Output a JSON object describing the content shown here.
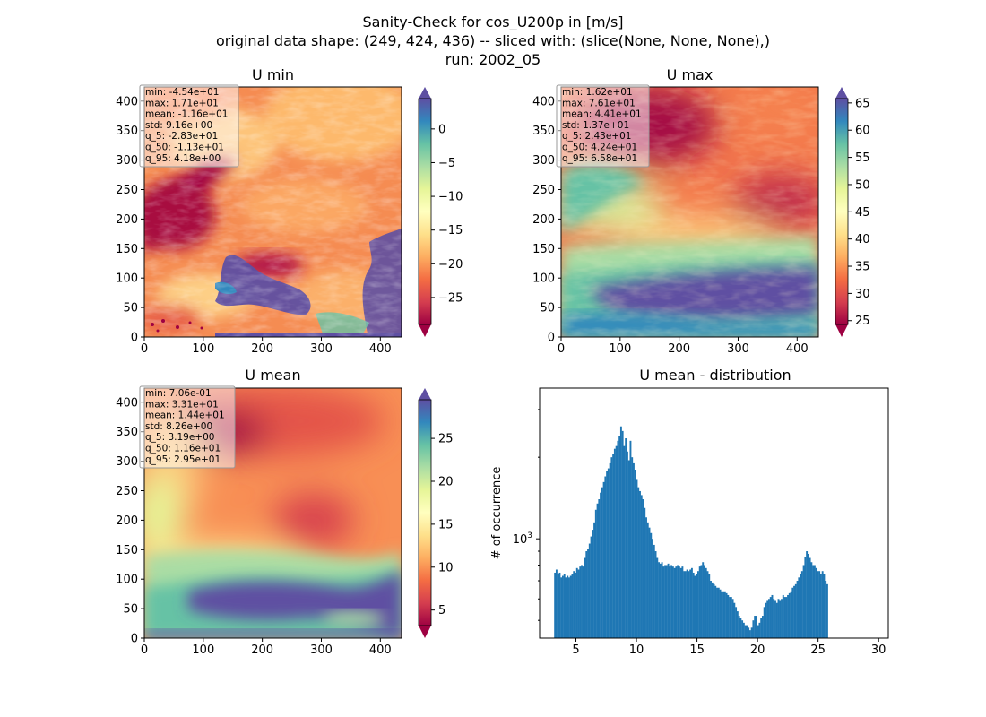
{
  "title_lines": [
    "Sanity-Check for cos_U200p in [m/s]",
    "original data shape: (249, 424, 436) -- sliced with: (slice(None, None, None),)",
    "run: 2002_05"
  ],
  "colors": {
    "hist_bar": "#1f77b4",
    "spectral": [
      "#9e0142",
      "#d53e4f",
      "#f46d43",
      "#fdae61",
      "#fee08b",
      "#ffffbf",
      "#e6f598",
      "#abdda4",
      "#66c2a5",
      "#3288bd",
      "#5e4fa2"
    ],
    "stats_box_bg": "#ffffff",
    "stats_box_edge": "#999999"
  },
  "chart_data": [
    {
      "type": "heatmap",
      "title": "U min",
      "colormap": "Spectral",
      "xlim": [
        0,
        436
      ],
      "ylim": [
        0,
        424
      ],
      "xticks": [
        0,
        100,
        200,
        300,
        400
      ],
      "yticks": [
        0,
        50,
        100,
        150,
        200,
        250,
        300,
        350,
        400
      ],
      "colorbar": {
        "vmin": -29,
        "vmax": 4.5,
        "ticks": [
          0,
          -5,
          -10,
          -15,
          -20,
          -25
        ],
        "extend": "both"
      },
      "stats": [
        "min: -4.54e+01",
        "max: 1.71e+01",
        "mean: -1.16e+01",
        "std: 9.16e+00",
        "q_5: -2.83e+01",
        "q_50: -1.13e+01",
        "q_95: 4.18e+00"
      ]
    },
    {
      "type": "heatmap",
      "title": "U max",
      "colormap": "Spectral",
      "xlim": [
        0,
        436
      ],
      "ylim": [
        0,
        424
      ],
      "xticks": [
        0,
        100,
        200,
        300,
        400
      ],
      "yticks": [
        0,
        50,
        100,
        150,
        200,
        250,
        300,
        350,
        400
      ],
      "colorbar": {
        "vmin": 24.3,
        "vmax": 65.8,
        "ticks": [
          25,
          30,
          35,
          40,
          45,
          50,
          55,
          60,
          65
        ],
        "extend": "both"
      },
      "stats": [
        "min: 1.62e+01",
        "max: 7.61e+01",
        "mean: 4.41e+01",
        "std: 1.37e+01",
        "q_5: 2.43e+01",
        "q_50: 4.24e+01",
        "q_95: 6.58e+01"
      ]
    },
    {
      "type": "heatmap",
      "title": "U mean",
      "colormap": "Spectral",
      "xlim": [
        0,
        436
      ],
      "ylim": [
        0,
        424
      ],
      "xticks": [
        0,
        100,
        200,
        300,
        400
      ],
      "yticks": [
        0,
        50,
        100,
        150,
        200,
        250,
        300,
        350,
        400
      ],
      "colorbar": {
        "vmin": 3.19,
        "vmax": 29.5,
        "ticks": [
          5,
          10,
          15,
          20,
          25
        ],
        "extend": "both"
      },
      "stats": [
        "min: 7.06e-01",
        "max: 3.31e+01",
        "mean: 1.44e+01",
        "std: 8.26e+00",
        "q_5: 3.19e+00",
        "q_50: 1.16e+01",
        "q_95: 2.95e+01"
      ]
    },
    {
      "type": "bar",
      "title": "U mean - distribution",
      "ylabel": "# of occurrence",
      "xlabel": "",
      "yscale": "log",
      "xlim": [
        2.0,
        30.8
      ],
      "ylim": [
        430,
        3600
      ],
      "xticks": [
        5,
        10,
        15,
        20,
        25,
        30
      ],
      "ytick_major": 1000,
      "ytick_major_label": "10^3",
      "bin_start": 3.2,
      "bin_width": 0.13,
      "values": [
        750,
        770,
        740,
        750,
        720,
        730,
        740,
        720,
        730,
        720,
        730,
        740,
        760,
        750,
        780,
        770,
        790,
        800,
        790,
        850,
        900,
        920,
        960,
        1020,
        1080,
        1150,
        1280,
        1350,
        1400,
        1480,
        1550,
        1620,
        1700,
        1780,
        1820,
        1900,
        2000,
        2050,
        2150,
        2200,
        2300,
        2400,
        2600,
        2500,
        2200,
        2350,
        2100,
        1950,
        2300,
        2000,
        1900,
        1800,
        1650,
        1550,
        1500,
        1450,
        1400,
        1300,
        1200,
        1150,
        1100,
        1050,
        1000,
        950,
        900,
        850,
        820,
        810,
        820,
        790,
        800,
        800,
        810,
        790,
        800,
        790,
        780,
        790,
        800,
        790,
        780,
        790,
        760,
        760,
        770,
        760,
        770,
        780,
        750,
        730,
        740,
        760,
        790,
        800,
        820,
        800,
        780,
        760,
        740,
        700,
        690,
        680,
        670,
        660,
        660,
        650,
        640,
        640,
        640,
        630,
        620,
        610,
        610,
        600,
        580,
        560,
        540,
        520,
        510,
        500,
        490,
        480,
        480,
        470,
        460,
        470,
        500,
        520,
        520,
        480,
        490,
        510,
        520,
        560,
        580,
        590,
        600,
        610,
        620,
        600,
        590,
        580,
        600,
        590,
        600,
        620,
        610,
        610,
        620,
        630,
        640,
        660,
        670,
        680,
        700,
        720,
        740,
        760,
        800,
        860,
        900,
        880,
        850,
        820,
        800,
        800,
        780,
        760,
        760,
        740,
        760,
        740,
        700,
        680
      ]
    }
  ]
}
